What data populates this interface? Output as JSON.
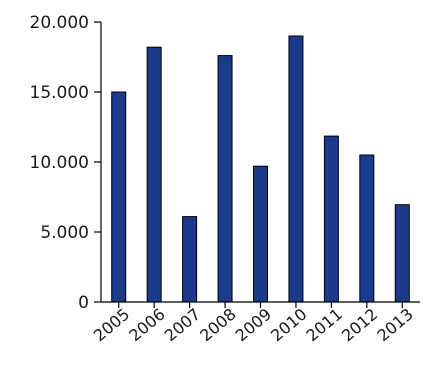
{
  "chart_data": {
    "type": "bar",
    "title": "",
    "xlabel": "",
    "ylabel": "",
    "categories": [
      "2005",
      "2006",
      "2007",
      "2008",
      "2009",
      "2010",
      "2011",
      "2012",
      "2013"
    ],
    "values": [
      15000,
      18200,
      6100,
      17600,
      9700,
      19000,
      11850,
      10500,
      6950
    ],
    "ylim": [
      0,
      20000
    ],
    "yticks": [
      0,
      5000,
      10000,
      15000,
      20000
    ],
    "ytick_labels": [
      "0",
      "5.000",
      "10.000",
      "15.000",
      "20.000"
    ],
    "grid": false,
    "legend": "none",
    "bar_color": "#1a3a8c",
    "bar_edge_color": "#000000"
  }
}
